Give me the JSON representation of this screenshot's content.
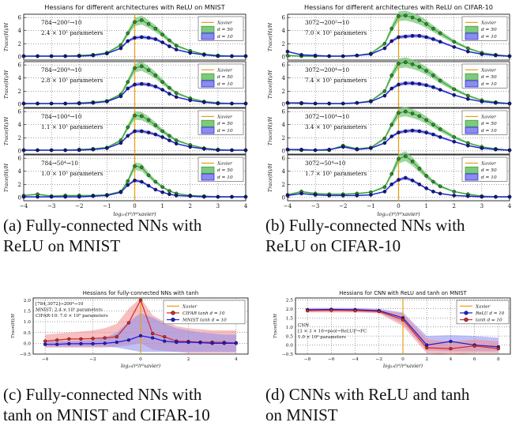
{
  "colors": {
    "xavier": "#e6a017",
    "green_line": "#2ca02c",
    "green_fill": "#7fc97f",
    "blue_line": "#1c1cd6",
    "blue_fill": "#8c8cf0",
    "red_line": "#d62728",
    "red_fill": "#f08a8a",
    "marker_green": "#2d8a2d",
    "marker_blue": "#111a80"
  },
  "captions": {
    "a": {
      "line1": "(a) Fully-connected NNs with",
      "line2": "ReLU on MNIST"
    },
    "b": {
      "line1": "(b) Fully-connected NNs with",
      "line2": "ReLU on CIFAR-10"
    },
    "c": {
      "line1": "(c) Fully-connected NNs with",
      "line2": "tanh on MNIST and CIFAR-10"
    },
    "d": {
      "line1": "(d) CNNs with ReLU and tanh",
      "line2": "on MNIST"
    }
  },
  "chart_data": [
    {
      "type": "line",
      "title": "Hessians for different architectures with ReLU on MNIST",
      "xlabel": "log₁₀(r²/r²xavier)",
      "ylabel": "Trace(H)/H",
      "xlim": [
        -4,
        4
      ],
      "ylim": [
        -0.5,
        6.5
      ],
      "xticks": [
        "−4",
        "−3",
        "−2",
        "−1",
        "0",
        "1",
        "2",
        "3",
        "4"
      ],
      "yticks": [
        "0",
        "2",
        "4",
        "6"
      ],
      "legend": [
        "Xavier",
        "d = 50",
        "d = 10"
      ],
      "x": [
        -4,
        -3.5,
        -3,
        -2.5,
        -2,
        -1.5,
        -1,
        -0.5,
        -0.25,
        0,
        0.25,
        0.5,
        0.75,
        1,
        1.25,
        1.5,
        2,
        2.5,
        3,
        3.5,
        4
      ],
      "panels": [
        {
          "arch": "784→200²→10",
          "params": "2.4 × 10⁵ parameters",
          "series": [
            {
              "name": "d = 50",
              "values": [
                0.1,
                0.1,
                0.1,
                0.1,
                0.2,
                0.3,
                0.6,
                1.8,
                3.6,
                5.3,
                5.6,
                5.0,
                4.3,
                3.4,
                2.5,
                1.7,
                0.9,
                0.4,
                0.2,
                0.1,
                0.1
              ]
            },
            {
              "name": "d = 10",
              "values": [
                0.1,
                0.1,
                0.1,
                0.1,
                0.1,
                0.2,
                0.5,
                1.3,
                2.4,
                2.9,
                3.0,
                2.9,
                2.7,
                2.2,
                1.6,
                1.1,
                0.6,
                0.3,
                0.1,
                0.1,
                0.1
              ]
            }
          ]
        },
        {
          "arch": "784→200⁴→10",
          "params": "2.8 × 10⁵ parameters",
          "series": [
            {
              "name": "d = 50",
              "values": [
                0.1,
                0.1,
                0.1,
                0.1,
                0.2,
                0.3,
                0.5,
                1.5,
                3.4,
                5.5,
                5.8,
                5.2,
                4.4,
                3.4,
                2.5,
                1.7,
                0.9,
                0.4,
                0.2,
                0.1,
                0.1
              ]
            },
            {
              "name": "d = 10",
              "values": [
                0.1,
                0.1,
                0.1,
                0.1,
                0.1,
                0.2,
                0.4,
                1.2,
                2.4,
                3.0,
                3.1,
                3.0,
                2.7,
                2.2,
                1.6,
                1.1,
                0.6,
                0.3,
                0.1,
                0.1,
                0.1
              ]
            }
          ]
        },
        {
          "arch": "784→100⁴→10",
          "params": "1.1 × 10⁵ parameters",
          "series": [
            {
              "name": "d = 50",
              "values": [
                0.1,
                0.1,
                0.1,
                0.1,
                0.2,
                0.3,
                0.5,
                1.6,
                3.6,
                5.4,
                5.3,
                4.7,
                3.9,
                3.0,
                2.3,
                1.6,
                0.9,
                0.4,
                0.2,
                0.1,
                0.1
              ]
            },
            {
              "name": "d = 10",
              "values": [
                0.1,
                0.1,
                0.1,
                0.1,
                0.1,
                0.2,
                0.4,
                1.2,
                2.3,
                3.0,
                3.0,
                2.8,
                2.5,
                2.1,
                1.6,
                1.1,
                0.6,
                0.3,
                0.1,
                0.1,
                0.1
              ]
            }
          ]
        },
        {
          "arch": "784→50⁴→10",
          "params": "1.0 × 10⁵ parameters",
          "series": [
            {
              "name": "d = 50",
              "values": [
                0.3,
                0.5,
                0.2,
                0.3,
                0.3,
                0.3,
                0.4,
                0.9,
                2.5,
                4.8,
                4.6,
                3.4,
                2.4,
                1.6,
                1.0,
                0.6,
                0.3,
                0.2,
                0.1,
                0.1,
                0.1
              ]
            },
            {
              "name": "d = 10",
              "values": [
                0.1,
                0.1,
                0.1,
                0.1,
                0.1,
                0.2,
                0.3,
                0.8,
                1.9,
                2.6,
                2.4,
                1.8,
                1.2,
                0.8,
                0.5,
                0.3,
                0.2,
                0.1,
                0.1,
                0.1,
                0.1
              ]
            }
          ]
        }
      ]
    },
    {
      "type": "line",
      "title": "Hessians for different architectures with ReLU on CIFAR-10",
      "xlabel": "log₁₀(r²/r²xavier)",
      "ylabel": "Trace(H)/H",
      "xlim": [
        -4,
        4
      ],
      "ylim": [
        -0.5,
        6.5
      ],
      "xticks": [
        "−4",
        "−3",
        "−2",
        "−1",
        "0",
        "1",
        "2",
        "3",
        "4"
      ],
      "yticks": [
        "0",
        "2",
        "4",
        "6"
      ],
      "legend": [
        "Xavier",
        "d = 50",
        "d = 10"
      ],
      "x": [
        -4,
        -3.5,
        -3,
        -2.5,
        -2,
        -1.5,
        -1,
        -0.5,
        -0.25,
        0,
        0.25,
        0.5,
        0.75,
        1,
        1.25,
        1.5,
        2,
        2.5,
        3,
        3.5,
        4
      ],
      "panels": [
        {
          "arch": "3072→200²→10",
          "params": "7.0 × 10⁵ parameters",
          "series": [
            {
              "name": "d = 50",
              "values": [
                0.2,
                0.1,
                0.1,
                0.1,
                0.1,
                0.2,
                0.5,
                2.0,
                4.3,
                6.2,
                6.3,
                6.0,
                5.6,
                5.0,
                4.3,
                3.6,
                2.3,
                1.3,
                0.6,
                0.3,
                0.1
              ]
            },
            {
              "name": "d = 10",
              "values": [
                0.8,
                0.3,
                0.2,
                0.1,
                0.1,
                0.2,
                0.4,
                1.3,
                2.4,
                3.0,
                3.1,
                3.2,
                3.2,
                3.0,
                2.7,
                2.3,
                1.5,
                0.8,
                0.4,
                0.2,
                0.1
              ]
            }
          ]
        },
        {
          "arch": "3072→200⁴→10",
          "params": "7.4 × 10⁵ parameters",
          "series": [
            {
              "name": "d = 50",
              "values": [
                0.2,
                0.1,
                0.1,
                0.1,
                0.1,
                0.2,
                0.5,
                2.0,
                4.4,
                6.2,
                6.4,
                6.1,
                5.7,
                5.1,
                4.4,
                3.6,
                2.3,
                1.3,
                0.6,
                0.3,
                0.1
              ]
            },
            {
              "name": "d = 10",
              "values": [
                0.2,
                0.2,
                0.1,
                0.1,
                0.1,
                0.2,
                0.4,
                1.3,
                2.4,
                3.0,
                3.2,
                3.2,
                3.1,
                2.9,
                2.6,
                2.2,
                1.4,
                0.8,
                0.4,
                0.2,
                0.1
              ]
            }
          ]
        },
        {
          "arch": "3072→100⁴→10",
          "params": "3.4 × 10⁵ parameters",
          "series": [
            {
              "name": "d = 50",
              "values": [
                0.2,
                0.1,
                0.1,
                0.1,
                0.8,
                0.3,
                0.5,
                1.9,
                4.0,
                5.8,
                6.0,
                5.7,
                5.3,
                4.7,
                4.0,
                3.3,
                2.1,
                1.2,
                0.6,
                0.3,
                0.1
              ]
            },
            {
              "name": "d = 10",
              "values": [
                0.2,
                0.2,
                0.1,
                0.2,
                0.6,
                0.2,
                0.4,
                1.2,
                2.2,
                2.8,
                3.0,
                3.1,
                3.0,
                2.8,
                2.5,
                2.1,
                1.4,
                0.8,
                0.4,
                0.2,
                0.1
              ]
            }
          ]
        },
        {
          "arch": "3072→50⁴→10",
          "params": "1.7 × 10⁵ parameters",
          "series": [
            {
              "name": "d = 50",
              "values": [
                0.4,
                0.9,
                0.6,
                0.5,
                0.5,
                0.6,
                0.8,
                1.6,
                3.6,
                5.9,
                6.3,
                5.5,
                4.4,
                3.3,
                2.4,
                1.7,
                0.9,
                0.5,
                0.2,
                0.1,
                0.1
              ]
            },
            {
              "name": "d = 10",
              "values": [
                0.3,
                0.6,
                0.4,
                0.3,
                0.3,
                0.3,
                0.4,
                0.9,
                2.0,
                2.7,
                3.0,
                2.6,
                2.0,
                1.4,
                0.9,
                0.6,
                0.3,
                0.2,
                0.1,
                0.1,
                0.1
              ]
            }
          ]
        }
      ]
    },
    {
      "type": "line",
      "title": "Hessians for fully-connected NNs with tanh",
      "xlabel": "log₁₀(r²/r²xavier)",
      "ylabel": "Trace(H)/H",
      "xlim": [
        -4.5,
        4.5
      ],
      "ylim": [
        -0.5,
        2.1
      ],
      "xticks": [
        "−4",
        "−2",
        "0",
        "2",
        "4"
      ],
      "xtick_values": [
        -4,
        -2,
        0,
        2,
        4
      ],
      "yticks": [
        "−0.5",
        "0.0",
        "0.5",
        "1.0",
        "1.5",
        "2.0"
      ],
      "ytick_values": [
        -0.5,
        0.0,
        0.5,
        1.0,
        1.5,
        2.0
      ],
      "legend": [
        "Xavier",
        "CIFAR tanh d = 10",
        "MNIST tanh d = 10"
      ],
      "annotation": [
        "[784,3072]→200⁴→10",
        "MNIST: 2.4 × 10⁵ parameters",
        "CIFAR-10: 7.0 × 10⁵ parameters"
      ],
      "x": [
        -4,
        -3.5,
        -3,
        -2.5,
        -2,
        -1.5,
        -1,
        -0.5,
        0,
        0.5,
        1,
        1.5,
        2,
        2.5,
        3,
        3.5,
        4
      ],
      "series": [
        {
          "name": "CIFAR tanh d = 10",
          "values": [
            0.1,
            0.15,
            0.2,
            0.2,
            0.22,
            0.25,
            0.3,
            0.95,
            2.0,
            0.45,
            0.3,
            0.1,
            0.08,
            0.05,
            0.05,
            0.04,
            0.02
          ],
          "band_low": [
            -0.2,
            -0.2,
            -0.2,
            -0.2,
            -0.2,
            -0.2,
            -0.15,
            -0.1,
            0.0,
            -0.3,
            -0.35,
            -0.4,
            -0.45,
            -0.45,
            -0.45,
            -0.45,
            -0.45
          ],
          "band_high": [
            0.4,
            0.45,
            0.5,
            0.55,
            0.6,
            0.7,
            0.9,
            1.6,
            2.1,
            1.3,
            1.0,
            0.8,
            0.7,
            0.65,
            0.6,
            0.6,
            0.6
          ]
        },
        {
          "name": "MNIST tanh d = 10",
          "values": [
            -0.05,
            -0.05,
            -0.02,
            -0.02,
            -0.02,
            0.0,
            0.05,
            0.15,
            0.35,
            0.25,
            0.1,
            0.05,
            0.05,
            0.03,
            0.0,
            0.0,
            0.0
          ],
          "band_low": [
            -0.15,
            -0.15,
            -0.15,
            -0.15,
            -0.15,
            -0.15,
            -0.2,
            -0.3,
            -0.4,
            -0.4,
            -0.4,
            -0.4,
            -0.4,
            -0.4,
            -0.4,
            -0.4,
            -0.4
          ],
          "band_high": [
            0.1,
            0.1,
            0.1,
            0.12,
            0.15,
            0.25,
            0.5,
            1.0,
            1.4,
            1.2,
            0.9,
            0.7,
            0.6,
            0.5,
            0.45,
            0.4,
            0.4
          ]
        }
      ]
    },
    {
      "type": "line",
      "title": "Hessians for CNN with ReLU and tanh on MNIST",
      "xlabel": "log₁₀(r²/r²xavier)",
      "ylabel": "Trace(H)/H",
      "xlim": [
        -9,
        9
      ],
      "ylim": [
        -0.5,
        2.6
      ],
      "xticks": [
        "−8",
        "−6",
        "−4",
        "−2",
        "0",
        "2",
        "4",
        "6",
        "8"
      ],
      "xtick_values": [
        -8,
        -6,
        -4,
        -2,
        0,
        2,
        4,
        6,
        8
      ],
      "yticks": [
        "−0.5",
        "0.0",
        "0.5",
        "1.0",
        "1.5",
        "2.0",
        "2.5"
      ],
      "ytick_values": [
        -0.5,
        0.0,
        0.5,
        1.0,
        1.5,
        2.0,
        2.5
      ],
      "legend": [
        "Xavier",
        "ReLU d = 10",
        "tanh d = 10"
      ],
      "annotation": [
        "CNN",
        "[3 × 3 × 16→pool→ReLU]³→FC",
        "1.0 × 10⁴ parameters"
      ],
      "x": [
        -8,
        -6,
        -4,
        -2,
        0,
        2,
        4,
        6,
        8
      ],
      "series": [
        {
          "name": "ReLU d = 10",
          "values": [
            1.95,
            1.97,
            1.95,
            1.9,
            1.5,
            0.0,
            0.2,
            0.0,
            -0.1
          ],
          "band_low": [
            1.85,
            1.85,
            1.85,
            1.8,
            1.2,
            -0.3,
            -0.35,
            -0.35,
            -0.35
          ],
          "band_high": [
            2.05,
            2.05,
            2.05,
            2.0,
            1.8,
            0.5,
            0.55,
            0.5,
            0.4
          ]
        },
        {
          "name": "tanh d = 10",
          "values": [
            1.9,
            1.92,
            1.9,
            1.85,
            1.4,
            -0.15,
            -0.2,
            -0.05,
            -0.2
          ],
          "band_low": [
            1.8,
            1.8,
            1.8,
            1.75,
            1.05,
            -0.45,
            -0.5,
            -0.45,
            -0.45
          ],
          "band_high": [
            2.0,
            2.0,
            2.0,
            1.95,
            1.75,
            0.3,
            0.2,
            0.3,
            0.2
          ]
        }
      ]
    }
  ]
}
